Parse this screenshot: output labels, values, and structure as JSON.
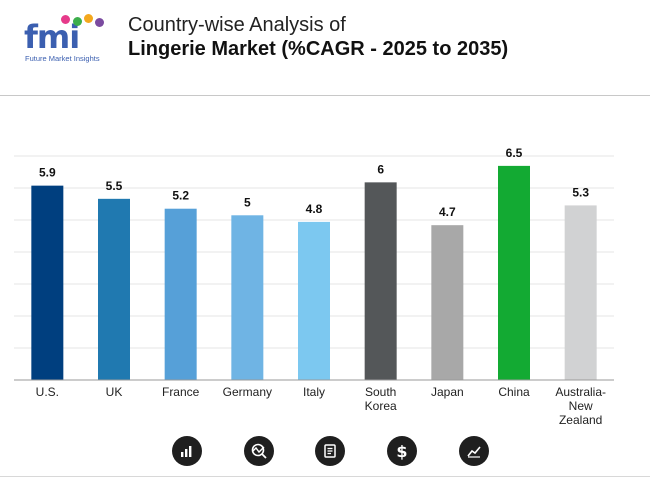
{
  "brand": {
    "letters": "fmi",
    "tagline": "Future Market Insights",
    "colors": [
      "#3b5fb0",
      "#e63a8a",
      "#3cae4b",
      "#f4a81d",
      "#7b4ba0"
    ]
  },
  "title": {
    "line1": "Country-wise Analysis of",
    "line2": "Lingerie Market (%CAGR - 2025 to 2035)"
  },
  "chart_data": {
    "type": "bar",
    "categories": [
      "U.S.",
      "UK",
      "France",
      "Germany",
      "Italy",
      "South Korea",
      "Japan",
      "China",
      "Australia-New Zealand"
    ],
    "category_lines": [
      [
        "U.S."
      ],
      [
        "UK"
      ],
      [
        "France"
      ],
      [
        "Germany"
      ],
      [
        "Italy"
      ],
      [
        "South",
        "Korea"
      ],
      [
        "Japan"
      ],
      [
        "China"
      ],
      [
        "Australia-",
        "New",
        "Zealand"
      ]
    ],
    "values": [
      5.9,
      5.5,
      5.2,
      5,
      4.8,
      6,
      4.7,
      6.5,
      5.3
    ],
    "colors": [
      "#003f7f",
      "#2079b0",
      "#56a0d8",
      "#6fb4e4",
      "#7cc8f0",
      "#545759",
      "#a8a8a8",
      "#13aa33",
      "#d1d2d3"
    ],
    "ylim": [
      0,
      6.8
    ],
    "grid": true,
    "legend": "none",
    "title": "",
    "xlabel": "",
    "ylabel": ""
  },
  "icons": [
    "bar-chart-icon",
    "analysis-icon",
    "document-icon",
    "dollar-icon",
    "trend-chart-icon"
  ]
}
